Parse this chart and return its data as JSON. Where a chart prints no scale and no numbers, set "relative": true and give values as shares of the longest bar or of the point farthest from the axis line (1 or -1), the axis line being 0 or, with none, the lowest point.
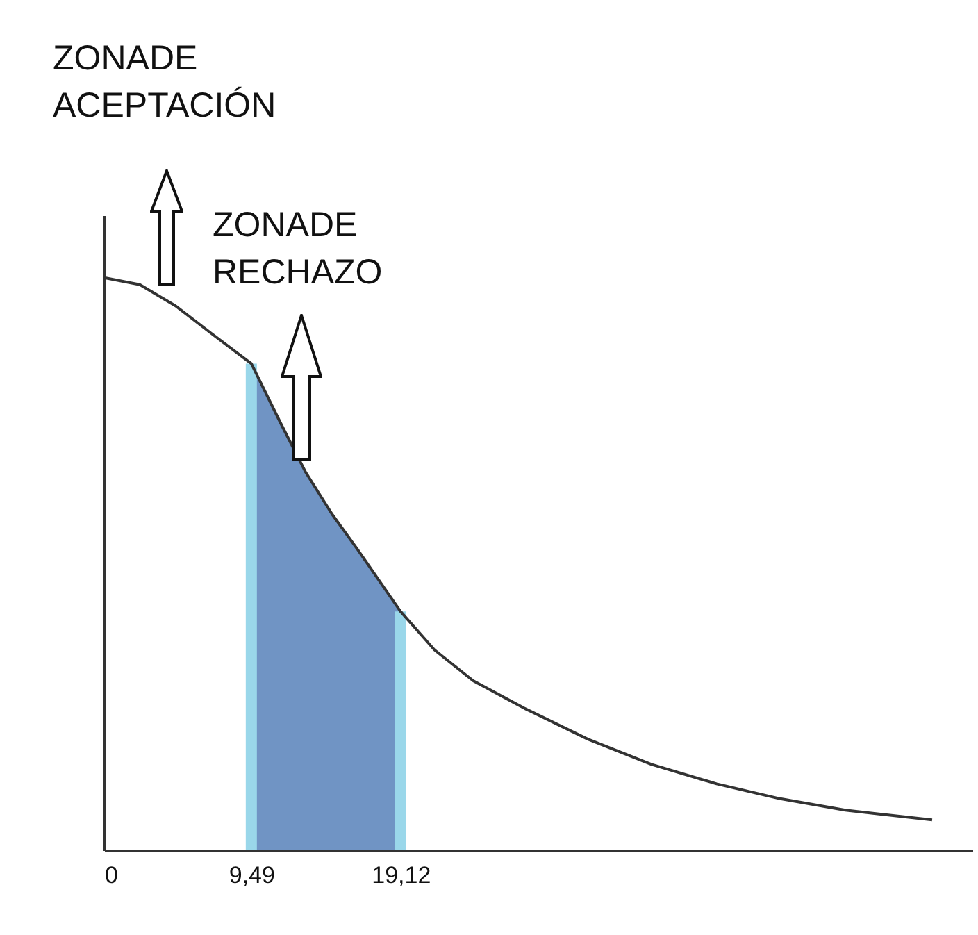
{
  "chart_data": {
    "type": "line",
    "relative": true,
    "annotations": [
      "ZONADE ACEPTACIÓN",
      "ZONADE RECHAZO"
    ],
    "xlim": [
      0,
      56
    ],
    "xticks": [
      0,
      {
        "value": 9.49,
        "label": "9,49"
      },
      {
        "value": 19.12,
        "label": "19,12"
      }
    ],
    "tick_labels": "x",
    "grid": false,
    "marker": "none",
    "series": [
      {
        "type": "area",
        "color": "#7094c4",
        "x": [
          9.49,
          11.4,
          13.0,
          14.7,
          16.3,
          19.12
        ],
        "values": [
          0.85,
          0.745,
          0.66,
          0.587,
          0.527,
          0.417
        ]
      },
      {
        "type": "line",
        "color": "#333333",
        "x": [
          0,
          2.3,
          4.6,
          6.9,
          9.49,
          11.4,
          13.0,
          14.7,
          16.3,
          19.12,
          21.3,
          23.8,
          27.1,
          31.2,
          35.3,
          39.5,
          43.6,
          47.8,
          53.4
        ],
        "values": [
          1,
          0.988,
          0.951,
          0.903,
          0.85,
          0.745,
          0.66,
          0.587,
          0.527,
          0.417,
          0.35,
          0.296,
          0.248,
          0.194,
          0.15,
          0.116,
          0.09,
          0.07,
          0.053
        ]
      }
    ],
    "ref_lines": [
      {
        "axis": "x",
        "value": 9.49,
        "color": "#9ad7ea"
      },
      {
        "axis": "x",
        "value": 19.12,
        "color": "#9ad7ea"
      }
    ]
  }
}
